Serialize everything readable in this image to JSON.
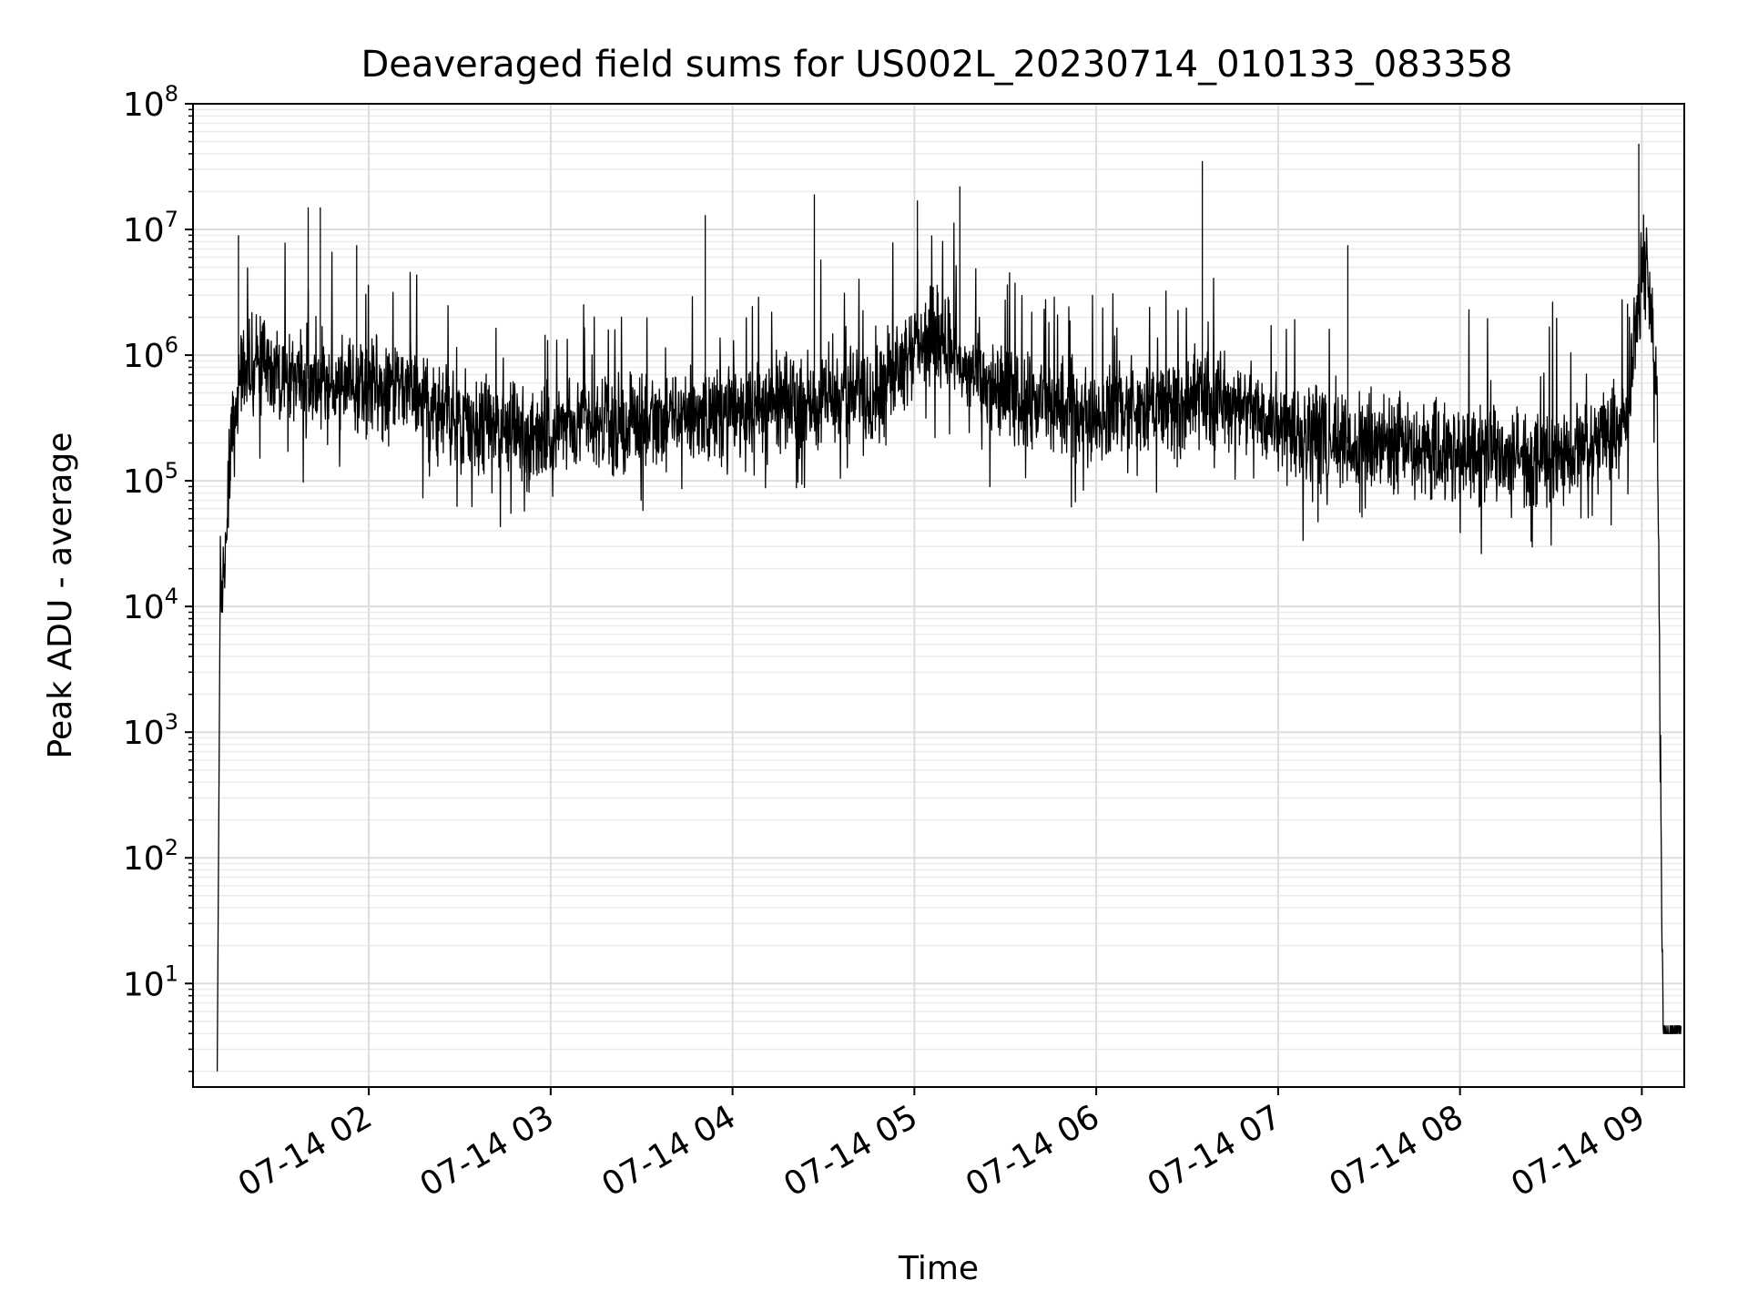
{
  "chart_data": {
    "type": "line",
    "title": "Deaveraged field sums for US002L_20230714_010133_083358",
    "xlabel": "Time",
    "ylabel": "Peak ADU - average",
    "yscale": "log",
    "ylim": [
      1.5,
      100000000
    ],
    "xlim": [
      "07-14 01:02",
      "07-14 09:14"
    ],
    "grid": "on (major and minor)",
    "x_ticks": [
      "07-14 02",
      "07-14 03",
      "07-14 04",
      "07-14 05",
      "07-14 06",
      "07-14 07",
      "07-14 08",
      "07-14 09"
    ],
    "y_ticks": [
      {
        "value": 10,
        "base": "10",
        "exp": "1"
      },
      {
        "value": 100,
        "base": "10",
        "exp": "2"
      },
      {
        "value": 1000,
        "base": "10",
        "exp": "3"
      },
      {
        "value": 10000,
        "base": "10",
        "exp": "4"
      },
      {
        "value": 100000,
        "base": "10",
        "exp": "5"
      },
      {
        "value": 1000000,
        "base": "10",
        "exp": "6"
      },
      {
        "value": 10000000,
        "base": "10",
        "exp": "7"
      },
      {
        "value": 100000000,
        "base": "10",
        "exp": "8"
      }
    ],
    "series": [
      {
        "color": "#000000",
        "x": [
          "07-14 01:10",
          "07-14 01:11",
          "07-14 01:12",
          "07-14 01:14",
          "07-14 01:17",
          "07-14 01:20",
          "07-14 01:25",
          "07-14 01:30",
          "07-14 01:40",
          "07-14 01:50",
          "07-14 02:00",
          "07-14 02:15",
          "07-14 02:30",
          "07-14 03:00",
          "07-14 03:30",
          "07-14 04:00",
          "07-14 04:15",
          "07-14 04:30",
          "07-14 04:45",
          "07-14 05:00",
          "07-14 05:10",
          "07-14 05:20",
          "07-14 05:40",
          "07-14 06:00",
          "07-14 06:20",
          "07-14 06:40",
          "07-14 07:00",
          "07-14 07:20",
          "07-14 07:40",
          "07-14 08:00",
          "07-14 08:15",
          "07-14 08:30",
          "07-14 08:45",
          "07-14 08:55",
          "07-14 09:00",
          "07-14 09:02",
          "07-14 09:05",
          "07-14 09:07",
          "07-14 09:13"
        ],
        "y": [
          2,
          20000,
          15000,
          150000,
          500000,
          900000,
          800000,
          700000,
          650000,
          600000,
          550000,
          500000,
          300000,
          250000,
          300000,
          350000,
          400000,
          450000,
          500000,
          1200000,
          1500000,
          600000,
          400000,
          350000,
          400000,
          450000,
          300000,
          200000,
          200000,
          180000,
          150000,
          150000,
          200000,
          300000,
          5000000,
          4000000,
          600000,
          5,
          4
        ]
      }
    ],
    "peaks": {
      "x": [
        "07-14 01:17",
        "07-14 01:40",
        "07-14 01:44",
        "07-14 01:56",
        "07-14 03:51",
        "07-14 04:27",
        "07-14 05:01",
        "07-14 05:15",
        "07-14 06:35",
        "07-14 07:23",
        "07-14 08:59"
      ],
      "y": [
        9000000,
        15000000,
        15000000,
        7500000,
        13000000,
        19000000,
        17000000,
        22000000,
        35000000,
        7500000,
        48000000
      ]
    }
  }
}
